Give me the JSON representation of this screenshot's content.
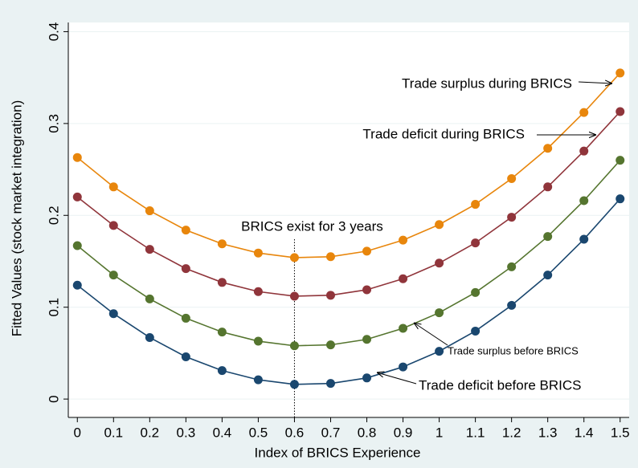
{
  "chart_data": {
    "type": "line",
    "x_label": "Index of BRICS Experience",
    "y_label": "Fitted Values (stock market integration)",
    "x": [
      0,
      0.1,
      0.2,
      0.3,
      0.4,
      0.5,
      0.6,
      0.7,
      0.8,
      0.9,
      1,
      1.1,
      1.2,
      1.3,
      1.4,
      1.5
    ],
    "series": [
      {
        "name": "Trade surplus during BRICS",
        "color": "#e8860c",
        "values": [
          0.263,
          0.231,
          0.205,
          0.184,
          0.169,
          0.159,
          0.154,
          0.155,
          0.161,
          0.173,
          0.19,
          0.212,
          0.24,
          0.273,
          0.312,
          0.355
        ]
      },
      {
        "name": "Trade deficit during BRICS",
        "color": "#90353b",
        "values": [
          0.22,
          0.189,
          0.163,
          0.142,
          0.127,
          0.117,
          0.112,
          0.113,
          0.119,
          0.131,
          0.148,
          0.17,
          0.198,
          0.231,
          0.27,
          0.313
        ]
      },
      {
        "name": "Trade surplus before BRICS",
        "color": "#55752f",
        "values": [
          0.167,
          0.135,
          0.109,
          0.088,
          0.073,
          0.063,
          0.058,
          0.059,
          0.065,
          0.077,
          0.094,
          0.116,
          0.144,
          0.177,
          0.216,
          0.26
        ]
      },
      {
        "name": "Trade deficit before BRICS",
        "color": "#1a476f",
        "values": [
          0.124,
          0.093,
          0.067,
          0.046,
          0.031,
          0.021,
          0.016,
          0.017,
          0.023,
          0.035,
          0.052,
          0.074,
          0.102,
          0.135,
          0.174,
          0.218
        ]
      }
    ],
    "xline": 0.6,
    "xline_label": "BRICS exist for 3 years",
    "xlim": [
      -0.025,
      1.525
    ],
    "ylim": [
      -0.02,
      0.41
    ],
    "xticks": [
      0,
      0.1,
      0.2,
      0.3,
      0.4,
      0.5,
      0.6,
      0.7,
      0.8,
      0.9,
      1,
      1.1,
      1.2,
      1.3,
      1.4,
      1.5
    ],
    "yticks": [
      0,
      0.1,
      0.2,
      0.3,
      0.4
    ],
    "grid": true
  }
}
